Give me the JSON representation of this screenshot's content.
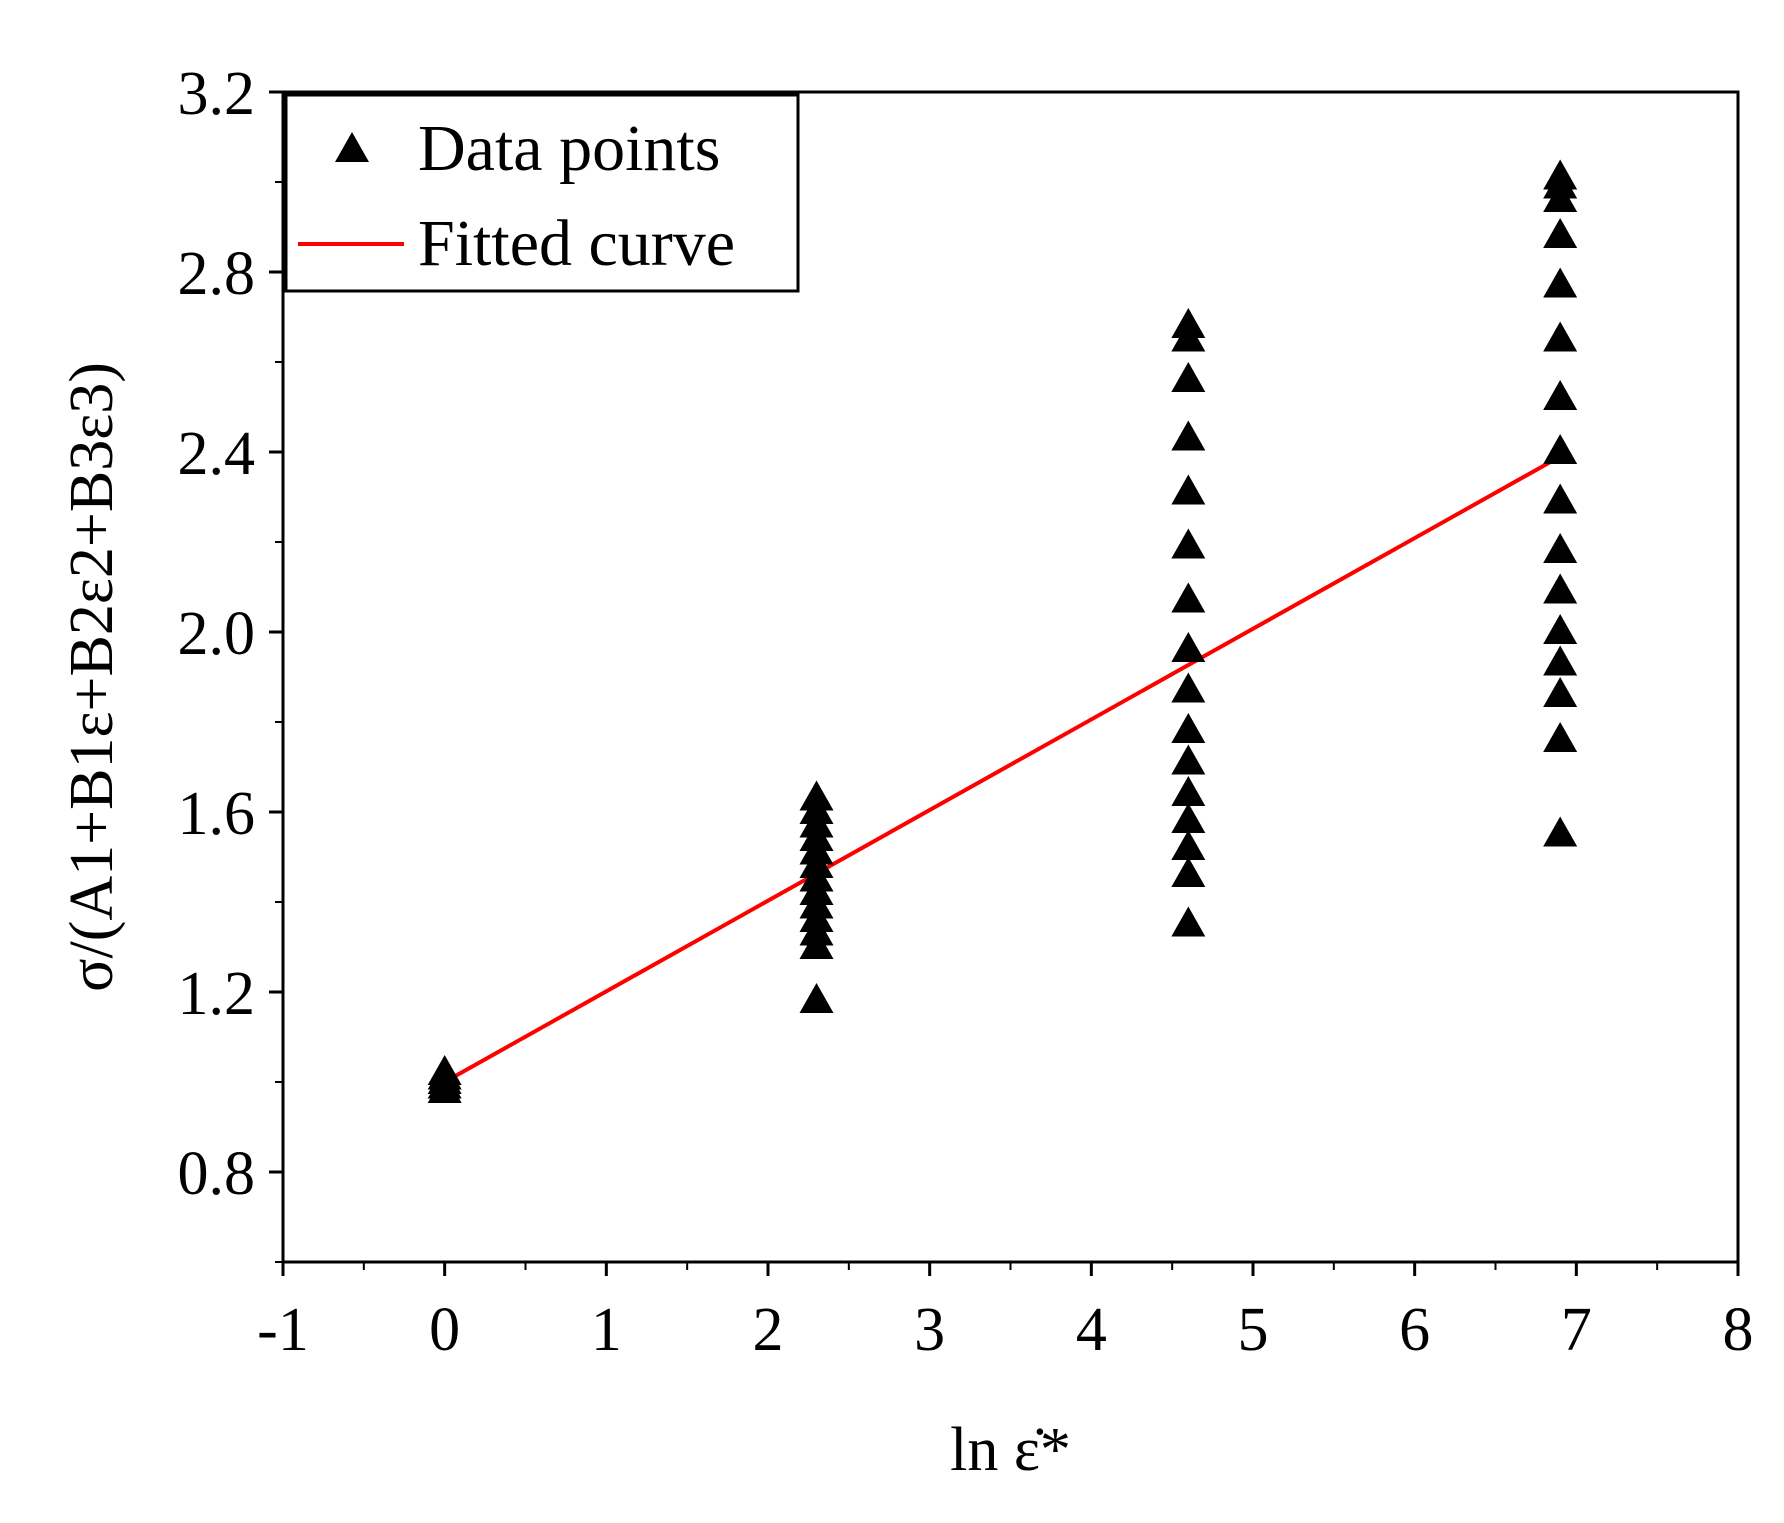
{
  "chart_data": {
    "type": "scatter",
    "title": "",
    "xlabel": "ln ε̇*",
    "ylabel": "σ/(A1+B1ε+B2ε2+B3ε3)",
    "xlim": [
      -1,
      8
    ],
    "ylim": [
      0.6,
      3.2
    ],
    "x_ticks": [
      "-1",
      "0",
      "1",
      "2",
      "3",
      "4",
      "5",
      "6",
      "7",
      "8"
    ],
    "y_ticks": [
      "0.8",
      "1.2",
      "1.6",
      "2.0",
      "2.4",
      "2.8",
      "3.2"
    ],
    "grid": false,
    "legend": {
      "position": "top-left",
      "entries": [
        "Data points",
        "Fitted curve"
      ]
    },
    "series": [
      {
        "name": "Data points",
        "marker": "triangle",
        "color": "#000000",
        "points": [
          {
            "x": 0,
            "y": 0.98
          },
          {
            "x": 0,
            "y": 0.99
          },
          {
            "x": 0,
            "y": 1.0
          },
          {
            "x": 0,
            "y": 1.01
          },
          {
            "x": 0,
            "y": 1.02
          },
          {
            "x": 2.3,
            "y": 1.18
          },
          {
            "x": 2.3,
            "y": 1.3
          },
          {
            "x": 2.3,
            "y": 1.33
          },
          {
            "x": 2.3,
            "y": 1.36
          },
          {
            "x": 2.3,
            "y": 1.39
          },
          {
            "x": 2.3,
            "y": 1.42
          },
          {
            "x": 2.3,
            "y": 1.45
          },
          {
            "x": 2.3,
            "y": 1.48
          },
          {
            "x": 2.3,
            "y": 1.51
          },
          {
            "x": 2.3,
            "y": 1.54
          },
          {
            "x": 2.3,
            "y": 1.57
          },
          {
            "x": 2.3,
            "y": 1.6
          },
          {
            "x": 2.3,
            "y": 1.63
          },
          {
            "x": 4.6,
            "y": 1.35
          },
          {
            "x": 4.6,
            "y": 1.46
          },
          {
            "x": 4.6,
            "y": 1.52
          },
          {
            "x": 4.6,
            "y": 1.58
          },
          {
            "x": 4.6,
            "y": 1.64
          },
          {
            "x": 4.6,
            "y": 1.71
          },
          {
            "x": 4.6,
            "y": 1.78
          },
          {
            "x": 4.6,
            "y": 1.87
          },
          {
            "x": 4.6,
            "y": 1.96
          },
          {
            "x": 4.6,
            "y": 2.07
          },
          {
            "x": 4.6,
            "y": 2.19
          },
          {
            "x": 4.6,
            "y": 2.31
          },
          {
            "x": 4.6,
            "y": 2.43
          },
          {
            "x": 4.6,
            "y": 2.56
          },
          {
            "x": 4.6,
            "y": 2.65
          },
          {
            "x": 4.6,
            "y": 2.68
          },
          {
            "x": 6.9,
            "y": 1.55
          },
          {
            "x": 6.9,
            "y": 1.76
          },
          {
            "x": 6.9,
            "y": 1.86
          },
          {
            "x": 6.9,
            "y": 1.93
          },
          {
            "x": 6.9,
            "y": 2.0
          },
          {
            "x": 6.9,
            "y": 2.09
          },
          {
            "x": 6.9,
            "y": 2.18
          },
          {
            "x": 6.9,
            "y": 2.29
          },
          {
            "x": 6.9,
            "y": 2.4
          },
          {
            "x": 6.9,
            "y": 2.52
          },
          {
            "x": 6.9,
            "y": 2.65
          },
          {
            "x": 6.9,
            "y": 2.77
          },
          {
            "x": 6.9,
            "y": 2.88
          },
          {
            "x": 6.9,
            "y": 2.96
          },
          {
            "x": 6.9,
            "y": 2.99
          },
          {
            "x": 6.9,
            "y": 3.01
          }
        ]
      },
      {
        "name": "Fitted curve",
        "type": "line",
        "color": "#ff0000",
        "points": [
          {
            "x": 0,
            "y": 1.0
          },
          {
            "x": 6.9,
            "y": 2.39
          }
        ]
      }
    ]
  }
}
